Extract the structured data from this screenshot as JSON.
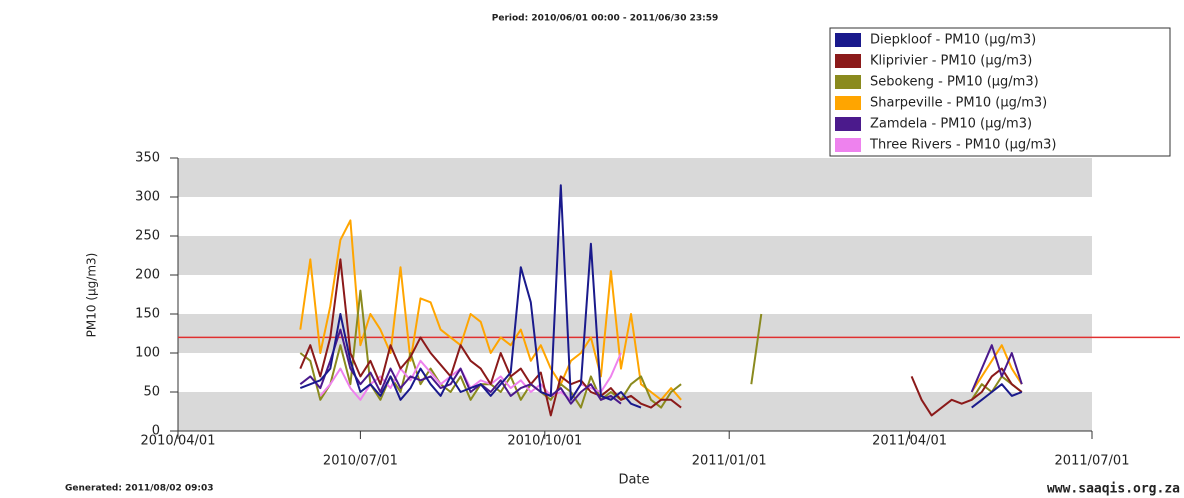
{
  "chart_data": {
    "type": "line",
    "title": "Period: 2010/06/01 00:00 - 2011/06/30 23:59",
    "footer_left": "Generated: 2011/08/02 09:03",
    "footer_right": "www.saaqis.org.za",
    "xlabel": "Date",
    "ylabel": "PM10 (µg/m3)",
    "x": [
      "2010-06-01",
      "2010-06-06",
      "2010-06-11",
      "2010-06-16",
      "2010-06-21",
      "2010-06-26",
      "2010-07-01",
      "2010-07-06",
      "2010-07-11",
      "2010-07-16",
      "2010-07-21",
      "2010-07-26",
      "2010-07-31",
      "2010-08-05",
      "2010-08-10",
      "2010-08-15",
      "2010-08-20",
      "2010-08-25",
      "2010-08-30",
      "2010-09-04",
      "2010-09-09",
      "2010-09-14",
      "2010-09-19",
      "2010-09-24",
      "2010-09-29",
      "2010-10-04",
      "2010-10-09",
      "2010-10-14",
      "2010-10-19",
      "2010-10-24",
      "2010-10-29",
      "2010-11-03",
      "2010-11-08",
      "2010-11-13",
      "2010-11-18",
      "2010-11-23",
      "2010-11-28",
      "2010-12-03",
      "2010-12-08",
      "2010-12-13",
      "2010-12-18",
      "2010-12-23",
      "2010-12-28",
      "2011-01-02",
      "2011-01-07",
      "2011-01-12",
      "2011-01-17",
      "2011-01-22",
      "2011-01-27",
      "2011-02-01",
      "2011-02-06",
      "2011-02-11",
      "2011-02-16",
      "2011-02-21",
      "2011-02-26",
      "2011-03-03",
      "2011-03-08",
      "2011-03-13",
      "2011-03-18",
      "2011-03-23",
      "2011-03-28",
      "2011-04-02",
      "2011-04-07",
      "2011-04-12",
      "2011-04-17",
      "2011-04-22",
      "2011-04-27",
      "2011-05-02",
      "2011-05-07",
      "2011-05-12",
      "2011-05-17",
      "2011-05-22",
      "2011-05-27"
    ],
    "series": [
      {
        "name": "Diepkloof - PM10 (µg/m3)",
        "color": "#1a1a8c",
        "values": [
          55,
          60,
          65,
          80,
          150,
          90,
          50,
          60,
          45,
          70,
          40,
          55,
          80,
          60,
          45,
          70,
          50,
          55,
          60,
          45,
          60,
          75,
          210,
          165,
          50,
          45,
          315,
          40,
          60,
          240,
          45,
          40,
          50,
          35,
          30,
          null,
          null,
          null,
          null,
          null,
          null,
          null,
          null,
          null,
          null,
          null,
          null,
          null,
          null,
          null,
          null,
          null,
          null,
          null,
          null,
          null,
          null,
          null,
          null,
          null,
          null,
          null,
          null,
          null,
          null,
          null,
          null,
          30,
          40,
          50,
          60,
          45,
          50
        ]
      },
      {
        "name": "Kliprivier - PM10 (µg/m3)",
        "color": "#8b1a1a",
        "values": [
          80,
          110,
          70,
          120,
          220,
          100,
          70,
          90,
          60,
          110,
          80,
          95,
          120,
          100,
          85,
          70,
          110,
          90,
          80,
          60,
          100,
          70,
          80,
          60,
          75,
          20,
          70,
          60,
          65,
          50,
          45,
          55,
          40,
          45,
          35,
          30,
          40,
          40,
          30,
          null,
          null,
          null,
          null,
          null,
          null,
          null,
          null,
          null,
          null,
          null,
          null,
          null,
          null,
          null,
          null,
          null,
          null,
          null,
          null,
          null,
          null,
          70,
          40,
          20,
          30,
          40,
          35,
          40,
          50,
          70,
          80,
          60,
          50
        ]
      },
      {
        "name": "Sebokeng - PM10 (µg/m3)",
        "color": "#8a8a1e",
        "values": [
          100,
          90,
          40,
          60,
          110,
          60,
          180,
          60,
          40,
          70,
          50,
          100,
          60,
          80,
          60,
          50,
          70,
          40,
          60,
          60,
          50,
          70,
          40,
          60,
          50,
          40,
          60,
          50,
          30,
          70,
          40,
          50,
          40,
          60,
          70,
          40,
          30,
          50,
          60,
          null,
          null,
          null,
          null,
          null,
          null,
          60,
          150,
          null,
          null,
          null,
          null,
          null,
          null,
          null,
          null,
          null,
          null,
          null,
          null,
          null,
          null,
          null,
          null,
          null,
          null,
          null,
          null,
          40,
          60,
          50,
          70,
          60,
          50
        ]
      },
      {
        "name": "Sharpeville - PM10 (µg/m3)",
        "color": "#ffa500",
        "values": [
          130,
          220,
          100,
          160,
          245,
          270,
          110,
          150,
          130,
          100,
          210,
          90,
          170,
          165,
          130,
          120,
          110,
          150,
          140,
          100,
          120,
          110,
          130,
          90,
          110,
          80,
          60,
          90,
          100,
          120,
          70,
          205,
          80,
          150,
          60,
          50,
          40,
          55,
          40,
          null,
          null,
          null,
          null,
          null,
          null,
          null,
          null,
          null,
          null,
          null,
          null,
          null,
          null,
          null,
          null,
          null,
          null,
          null,
          null,
          null,
          null,
          null,
          null,
          null,
          null,
          null,
          null,
          50,
          70,
          90,
          110,
          80,
          60
        ]
      },
      {
        "name": "Zamdela - PM10 (µg/m3)",
        "color": "#4b1a8c",
        "values": [
          60,
          70,
          55,
          90,
          130,
          80,
          60,
          75,
          50,
          80,
          55,
          70,
          65,
          70,
          55,
          60,
          80,
          50,
          60,
          50,
          65,
          45,
          55,
          60,
          50,
          45,
          55,
          35,
          50,
          60,
          40,
          45,
          35,
          null,
          null,
          null,
          null,
          null,
          null,
          null,
          null,
          null,
          null,
          null,
          null,
          null,
          null,
          null,
          null,
          null,
          null,
          null,
          null,
          null,
          null,
          null,
          null,
          null,
          null,
          null,
          null,
          null,
          null,
          null,
          null,
          null,
          null,
          50,
          80,
          110,
          70,
          100,
          60
        ]
      },
      {
        "name": "Three Rivers - PM10 (µg/m3)",
        "color": "#ee82ee",
        "values": [
          null,
          null,
          45,
          60,
          80,
          55,
          40,
          60,
          70,
          55,
          80,
          65,
          90,
          75,
          60,
          70,
          80,
          55,
          65,
          60,
          70,
          55,
          65,
          50,
          60,
          45,
          50,
          40,
          60,
          55,
          50,
          70,
          100,
          null,
          null,
          null,
          null,
          null,
          null,
          null,
          null,
          null,
          null,
          null,
          null,
          null,
          null,
          null,
          null,
          null,
          null,
          null,
          null,
          null,
          null,
          null,
          null,
          null,
          null,
          null,
          null,
          null,
          null,
          null,
          null,
          null,
          null,
          null,
          null,
          null,
          null,
          null,
          null
        ]
      }
    ],
    "threshold": 120,
    "threshold_color": "#e03030",
    "xlim": [
      "2010-04-01",
      "2011-07-01"
    ],
    "xticks": [
      {
        "value": "2010-04-01",
        "label": "2010/04/01"
      },
      {
        "value": "2010-07-01",
        "label": "2010/07/01"
      },
      {
        "value": "2010-10-01",
        "label": "2010/10/01"
      },
      {
        "value": "2011-01-01",
        "label": "2011/01/01"
      },
      {
        "value": "2011-04-01",
        "label": "2011/04/01"
      },
      {
        "value": "2011-07-01",
        "label": "2011/07/01"
      }
    ],
    "ylim": [
      0,
      350
    ],
    "yticks": [
      0,
      50,
      100,
      150,
      200,
      250,
      300,
      350
    ],
    "bands": true,
    "band_color": "#d9d9d9",
    "legend": "top-right"
  }
}
